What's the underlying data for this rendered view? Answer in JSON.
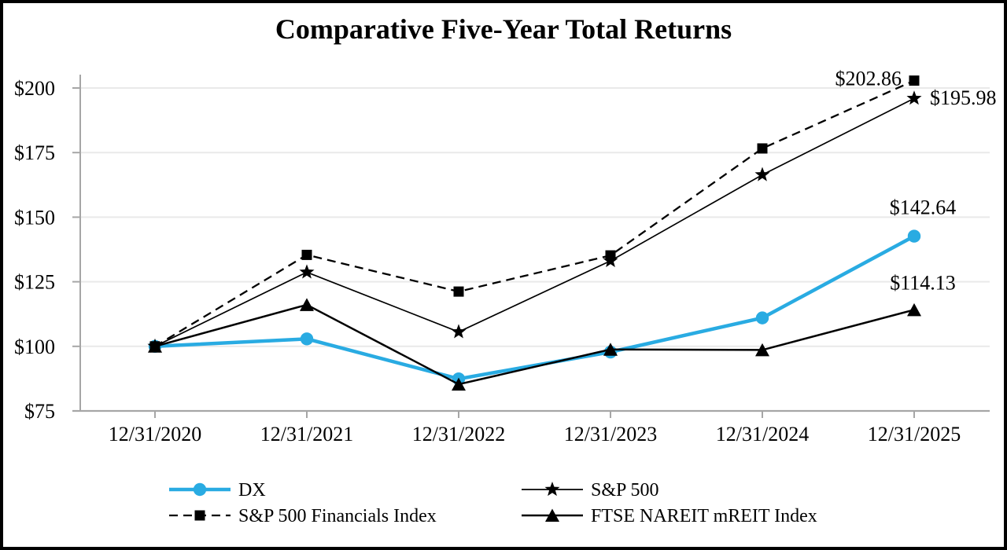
{
  "title": "Comparative Five-Year Total Returns",
  "chart_data": {
    "type": "line",
    "title": "Comparative Five-Year Total Returns",
    "categories": [
      "12/31/2020",
      "12/31/2021",
      "12/31/2022",
      "12/31/2023",
      "12/31/2024",
      "12/31/2025"
    ],
    "series": [
      {
        "name": "DX",
        "color": "#29ABE2",
        "marker": "circle",
        "line_style": "solid",
        "values": [
          100.0,
          102.9,
          87.4,
          97.8,
          111.0,
          142.64
        ],
        "end_label": "$142.64"
      },
      {
        "name": "S&P 500",
        "color": "#000000",
        "marker": "star",
        "line_style": "solid",
        "values": [
          100.0,
          128.7,
          105.6,
          133.1,
          166.4,
          195.98
        ],
        "end_label": "$195.98"
      },
      {
        "name": "S&P 500 Financials Index",
        "color": "#000000",
        "marker": "square",
        "line_style": "dashed",
        "values": [
          100.0,
          135.4,
          121.2,
          135.2,
          176.6,
          202.86
        ],
        "end_label": "$202.86"
      },
      {
        "name": "FTSE NAREIT mREIT Index",
        "color": "#000000",
        "marker": "triangle",
        "line_style": "solid",
        "values": [
          100.0,
          116.1,
          85.3,
          98.8,
          98.6,
          114.13
        ],
        "end_label": "$114.13"
      }
    ],
    "y_axis": {
      "tick_labels": [
        "$200",
        "$175",
        "$150",
        "$125",
        "$100",
        "$75"
      ],
      "tick_values": [
        200,
        175,
        150,
        125,
        100,
        75
      ],
      "min": 75,
      "max": 212
    },
    "x_axis": {
      "tick_labels": [
        "12/31/2020",
        "12/31/2021",
        "12/31/2022",
        "12/31/2023",
        "12/31/2024",
        "12/31/2025"
      ]
    },
    "grid": "horizontal",
    "legend_position": "bottom",
    "legend_rows": [
      [
        "DX",
        "S&P 500"
      ],
      [
        "S&P 500 Financials Index",
        "FTSE NAREIT mREIT Index"
      ]
    ]
  },
  "colors": {
    "accent_blue": "#29ABE2",
    "series_black": "#000000",
    "gridline": "#E9E9E9",
    "axis": "#A6A6A6",
    "text": "#000000",
    "background": "#FFFFFF",
    "frame_border": "#000000"
  }
}
